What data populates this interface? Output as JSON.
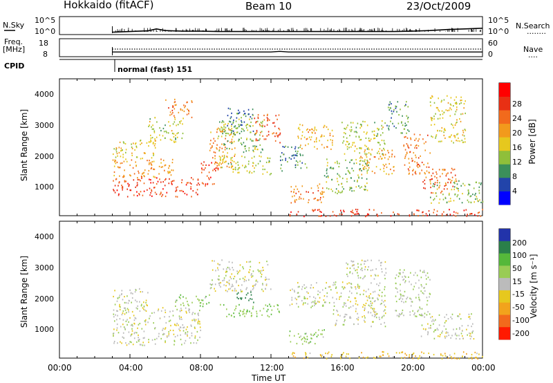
{
  "header": {
    "site": "Hokkaido (fitACF)",
    "beam": "Beam 10",
    "date": "23/Oct/2009"
  },
  "nsky_panel": {
    "left_label": "N.Sky",
    "left_ticks": [
      "10^5",
      "10^0"
    ],
    "right_ticks": [
      "10^5",
      "10^0"
    ],
    "right_label": "N.Search",
    "right_legend": "........"
  },
  "freq_panel": {
    "left_label_1": "Freq.",
    "left_label_2": "[MHz]",
    "left_ticks": [
      "18",
      "8"
    ],
    "right_ticks": [
      "60",
      "0"
    ],
    "right_label": "Nave",
    "right_legend": "...."
  },
  "cpid": {
    "label": "CPID",
    "mode": "normal (fast) 151"
  },
  "x_axis": {
    "ticks": [
      "00:00",
      "04:00",
      "08:00",
      "12:00",
      "16:00",
      "20:00",
      "00:00"
    ],
    "label": "Time UT"
  },
  "range_axis": {
    "label": "Slant Range [km]",
    "ticks": [
      "1000",
      "2000",
      "3000",
      "4000"
    ]
  },
  "power_colorbar": {
    "label": "Power [dB]",
    "ticks": [
      "4",
      "8",
      "12",
      "16",
      "20",
      "24",
      "28"
    ],
    "colors": [
      "#0000ff",
      "#2244aa",
      "#3b8f5a",
      "#8fbf3a",
      "#e6c81e",
      "#f29a1c",
      "#f26a1c",
      "#e83014",
      "#ff0000"
    ]
  },
  "velocity_colorbar": {
    "label": "Velocity [m s⁻¹]",
    "ticks": [
      "200",
      "100",
      "50",
      "15",
      "-15",
      "-50",
      "-100",
      "-200"
    ],
    "colors": [
      "#2233aa",
      "#2a7f4a",
      "#55b83a",
      "#99cc55",
      "#bbbbbb",
      "#e6c81e",
      "#f2a31c",
      "#f26a1c",
      "#ff1a00"
    ]
  },
  "chart_data": [
    {
      "type": "line",
      "title": "N.Sky",
      "x_units": "hours UT",
      "series": [
        {
          "x": [
            3,
            4,
            5,
            5.5,
            6,
            7,
            8,
            9,
            10,
            12,
            14,
            16,
            18,
            19,
            20,
            21,
            22,
            23,
            24
          ],
          "y_log10": [
            0.3,
            0.5,
            0.7,
            1.3,
            0.8,
            0.6,
            0.6,
            0.5,
            0.5,
            0.5,
            0.5,
            0.5,
            0.5,
            0.5,
            0.6,
            0.8,
            1.1,
            1.3,
            1.5
          ]
        }
      ]
    },
    {
      "type": "line",
      "title": "Freq.",
      "x_units": "hours UT",
      "ylim": [
        8,
        18
      ],
      "series": [
        {
          "x": [
            3,
            12,
            12.5,
            13,
            24
          ],
          "y": [
            10.2,
            10.2,
            10.6,
            10.2,
            10.2
          ]
        }
      ]
    },
    {
      "type": "heatmap",
      "title": "Power [dB]",
      "xlim": [
        0,
        24
      ],
      "ylim": [
        180,
        4500
      ],
      "blobs": [
        {
          "t0": 3.0,
          "t1": 8.0,
          "r0": 800,
          "r1": 1400,
          "value": 26
        },
        {
          "t0": 3.0,
          "t1": 6.5,
          "r0": 1400,
          "r1": 2000,
          "value": 20
        },
        {
          "t0": 3.0,
          "t1": 5.5,
          "r0": 2000,
          "r1": 2600,
          "value": 16
        },
        {
          "t0": 5.0,
          "t1": 7.0,
          "r0": 2500,
          "r1": 3300,
          "value": 14
        },
        {
          "t0": 6.0,
          "t1": 7.5,
          "r0": 3300,
          "r1": 3900,
          "value": 22
        },
        {
          "t0": 8.0,
          "t1": 9.0,
          "r0": 1100,
          "r1": 1900,
          "value": 26
        },
        {
          "t0": 8.5,
          "t1": 10.0,
          "r0": 1700,
          "r1": 3000,
          "value": 20
        },
        {
          "t0": 9.0,
          "t1": 11.5,
          "r0": 2200,
          "r1": 3300,
          "value": 12
        },
        {
          "t0": 9.5,
          "t1": 11.0,
          "r0": 2800,
          "r1": 3600,
          "value": 8
        },
        {
          "t0": 11.0,
          "t1": 12.5,
          "r0": 2500,
          "r1": 3400,
          "value": 24
        },
        {
          "t0": 9.0,
          "t1": 12.0,
          "r0": 1500,
          "r1": 2100,
          "value": 14
        },
        {
          "t0": 12.5,
          "t1": 14.0,
          "r0": 1600,
          "r1": 2400,
          "value": 8
        },
        {
          "t0": 13.5,
          "t1": 15.5,
          "r0": 2300,
          "r1": 3100,
          "value": 18
        },
        {
          "t0": 13.0,
          "t1": 15.0,
          "r0": 600,
          "r1": 1200,
          "value": 22
        },
        {
          "t0": 15.0,
          "t1": 17.5,
          "r0": 900,
          "r1": 2000,
          "value": 12
        },
        {
          "t0": 16.0,
          "t1": 18.5,
          "r0": 2100,
          "r1": 3200,
          "value": 14
        },
        {
          "t0": 17.0,
          "t1": 19.0,
          "r0": 1500,
          "r1": 2300,
          "value": 20
        },
        {
          "t0": 18.5,
          "t1": 19.8,
          "r0": 2800,
          "r1": 3800,
          "value": 10
        },
        {
          "t0": 19.5,
          "t1": 21.0,
          "r0": 1500,
          "r1": 2800,
          "value": 22
        },
        {
          "t0": 20.5,
          "t1": 22.5,
          "r0": 900,
          "r1": 1700,
          "value": 24
        },
        {
          "t0": 21.0,
          "t1": 24.0,
          "r0": 600,
          "r1": 1300,
          "value": 12
        },
        {
          "t0": 21.0,
          "t1": 23.0,
          "r0": 2500,
          "r1": 4000,
          "value": 16
        },
        {
          "t0": 13.0,
          "t1": 24.0,
          "r0": 180,
          "r1": 400,
          "value": 26
        }
      ]
    },
    {
      "type": "heatmap",
      "title": "Velocity [m s-1]",
      "xlim": [
        0,
        24
      ],
      "ylim": [
        180,
        4500
      ],
      "blobs": [
        {
          "t0": 3.0,
          "t1": 8.0,
          "r0": 600,
          "r1": 1800,
          "value": 0
        },
        {
          "t0": 3.0,
          "t1": 5.0,
          "r0": 1800,
          "r1": 2400,
          "value": 0
        },
        {
          "t0": 6.5,
          "t1": 8.5,
          "r0": 1800,
          "r1": 2200,
          "value": 40
        },
        {
          "t0": 8.5,
          "t1": 12.0,
          "r0": 2300,
          "r1": 3300,
          "value": 0
        },
        {
          "t0": 10.0,
          "t1": 11.0,
          "r0": 1900,
          "r1": 2300,
          "value": 150
        },
        {
          "t0": 9.0,
          "t1": 12.5,
          "r0": 1500,
          "r1": 1900,
          "value": 45
        },
        {
          "t0": 13.0,
          "t1": 15.5,
          "r0": 1800,
          "r1": 2600,
          "value": 0
        },
        {
          "t0": 13.0,
          "t1": 15.0,
          "r0": 600,
          "r1": 1100,
          "value": 30
        },
        {
          "t0": 15.5,
          "t1": 18.5,
          "r0": 1200,
          "r1": 2600,
          "value": 0
        },
        {
          "t0": 16.0,
          "t1": 18.5,
          "r0": 2700,
          "r1": 3300,
          "value": 0
        },
        {
          "t0": 19.0,
          "t1": 21.0,
          "r0": 1500,
          "r1": 3000,
          "value": 20
        },
        {
          "t0": 20.5,
          "t1": 23.5,
          "r0": 800,
          "r1": 1600,
          "value": 0
        },
        {
          "t0": 13.0,
          "t1": 24.0,
          "r0": 180,
          "r1": 400,
          "value": -40
        }
      ]
    }
  ]
}
